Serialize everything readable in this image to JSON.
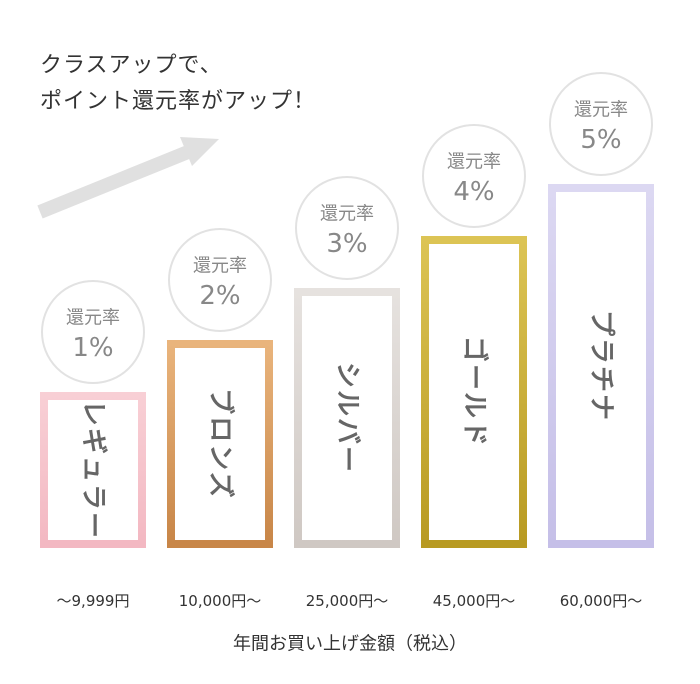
{
  "headline": {
    "line1": "クラスアップで、",
    "line2": "ポイント還元率がアップ！"
  },
  "chart_data": {
    "type": "bar",
    "title": "",
    "xlabel": "年間お買い上げ金額（税込）",
    "ylabel": "",
    "grid": false,
    "legend": "none",
    "categories": [
      "〜9,999円",
      "10,000円〜",
      "25,000円〜",
      "45,000円〜",
      "60,000円〜"
    ],
    "series": [
      {
        "values": [
          1,
          2,
          3,
          4,
          5
        ]
      }
    ],
    "class_names": [
      "レギュラー",
      "ブロンズ",
      "シルバー",
      "ゴールド",
      "プラチナ"
    ],
    "rate_label": "還元率",
    "rate_texts": [
      "1%",
      "2%",
      "3%",
      "4%",
      "5%"
    ],
    "colors": [
      [
        "#f8cfd5",
        "#f3b8c2"
      ],
      [
        "#e9b47c",
        "#c88648"
      ],
      [
        "#e6e2df",
        "#cfc8c3"
      ],
      [
        "#dcc455",
        "#b89a22"
      ],
      [
        "#dcd8f2",
        "#c5bfe8"
      ]
    ]
  }
}
